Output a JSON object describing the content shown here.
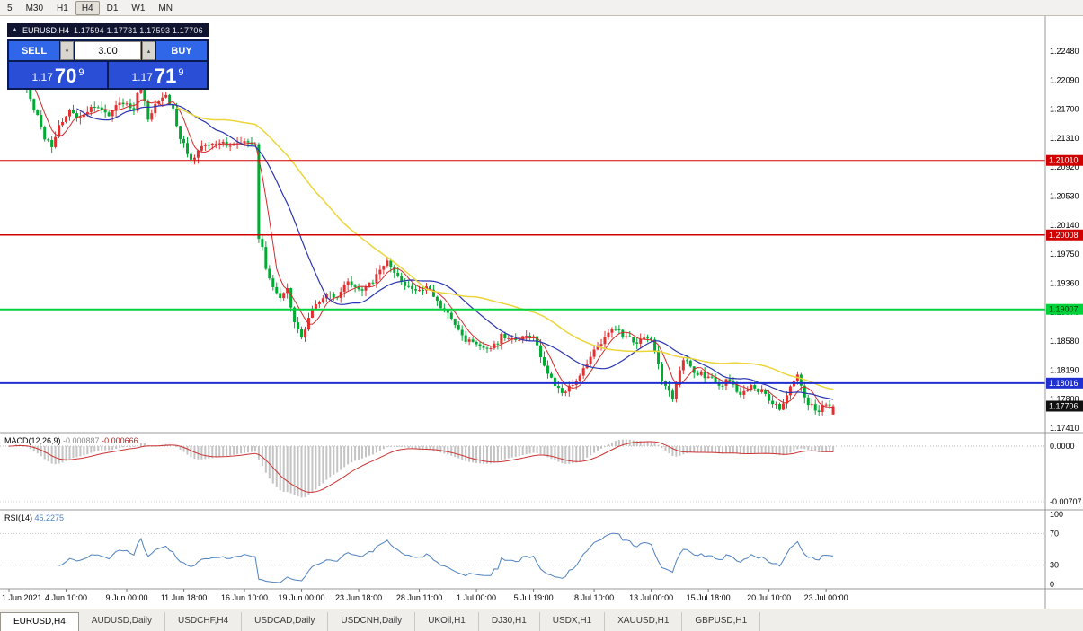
{
  "toolbar": {
    "timeframes": [
      "5",
      "M30",
      "H1",
      "H4",
      "D1",
      "W1",
      "MN"
    ],
    "active": "H4"
  },
  "chart_title": {
    "collapse_icon": "▲",
    "symbol": "EURUSD,H4",
    "ohlc": "1.17594 1.17731 1.17593 1.17706"
  },
  "trade_panel": {
    "sell_label": "SELL",
    "buy_label": "BUY",
    "volume": "3.00",
    "spinner_up_icon": "▴",
    "spinner_down_icon": "▾",
    "sell_price": {
      "base": "1.17",
      "pips": "70",
      "pipette": "9"
    },
    "buy_price": {
      "base": "1.17",
      "pips": "71",
      "pipette": "9"
    }
  },
  "price_axis": {
    "labels": [
      "1.22480",
      "1.22090",
      "1.21700",
      "1.21310",
      "1.20920",
      "1.20530",
      "1.20140",
      "1.19750",
      "1.19360",
      "1.18970",
      "1.18580",
      "1.18190",
      "1.17800",
      "1.17410"
    ],
    "tags": [
      {
        "text": "1.21010",
        "price": 1.2101,
        "bg": "#d00000",
        "fg": "#ffffff"
      },
      {
        "text": "1.20008",
        "price": 1.20008,
        "bg": "#d00000",
        "fg": "#ffffff"
      },
      {
        "text": "1.19007",
        "price": 1.19007,
        "bg": "#00d23c",
        "fg": "#003300"
      },
      {
        "text": "1.18016",
        "price": 1.18016,
        "bg": "#1f2fd0",
        "fg": "#ffffff"
      },
      {
        "text": "1.17706",
        "price": 1.17706,
        "bg": "#111111",
        "fg": "#ffffff"
      }
    ]
  },
  "macd_panel": {
    "name": "MACD(12,26,9)",
    "value_main": "-0.000887",
    "value_signal": "-0.000666",
    "axis_labels": [
      "0.0000",
      "-0.00707"
    ]
  },
  "rsi_panel": {
    "name": "RSI(14)",
    "value": "45.2275",
    "axis_labels": [
      "100",
      "70",
      "30",
      "0"
    ],
    "levels": [
      70,
      30
    ]
  },
  "time_axis": {
    "labels": [
      "1 Jun 2021",
      "4 Jun 10:00",
      "9 Jun 00:00",
      "11 Jun 18:00",
      "16 Jun 10:00",
      "19 Jun 00:00",
      "23 Jun 18:00",
      "28 Jun 11:00",
      "1 Jul 00:00",
      "5 Jul 19:00",
      "8 Jul 10:00",
      "13 Jul 00:00",
      "15 Jul 18:00",
      "20 Jul 10:00",
      "23 Jul 00:00"
    ],
    "indices": [
      0,
      16,
      33,
      49,
      66,
      82,
      98,
      115,
      131,
      147,
      164,
      180,
      196,
      213,
      229
    ]
  },
  "tabs": {
    "active": "EURUSD,H4",
    "items": [
      "EURUSD,H4",
      "AUDUSD,Daily",
      "USDCHF,H4",
      "USDCAD,Daily",
      "USDCNH,Daily",
      "UKOil,H1",
      "DJ30,H1",
      "USDX,H1",
      "XAUUSD,H1",
      "GBPUSD,H1"
    ]
  },
  "chart_data": {
    "type": "candlestick",
    "symbol": "EURUSD",
    "timeframe": "H4",
    "title": "EURUSD,H4",
    "visible_time_range": [
      "1 Jun 2021",
      "23 Jul 2021"
    ],
    "ylim": [
      1.1735,
      1.2295
    ],
    "candle_count": 232,
    "seed": 9,
    "noise": 0.0008,
    "wick": 0.0008,
    "colors": {
      "up": "#e03232",
      "down": "#00aa33"
    },
    "anchors": [
      [
        0,
        1.2215
      ],
      [
        2,
        1.2232
      ],
      [
        4,
        1.2207
      ],
      [
        7,
        1.2172
      ],
      [
        10,
        1.2132
      ],
      [
        12,
        1.2118
      ],
      [
        14,
        1.2148
      ],
      [
        17,
        1.2166
      ],
      [
        20,
        1.2158
      ],
      [
        24,
        1.2174
      ],
      [
        28,
        1.2164
      ],
      [
        32,
        1.218
      ],
      [
        35,
        1.2168
      ],
      [
        37,
        1.2208
      ],
      [
        39,
        1.2152
      ],
      [
        41,
        1.2176
      ],
      [
        44,
        1.2188
      ],
      [
        46,
        1.2168
      ],
      [
        48,
        1.2132
      ],
      [
        51,
        1.2104
      ],
      [
        54,
        1.2118
      ],
      [
        58,
        1.2126
      ],
      [
        62,
        1.2122
      ],
      [
        66,
        1.2128
      ],
      [
        69,
        1.212
      ],
      [
        70,
        1.1998
      ],
      [
        71,
        1.1988
      ],
      [
        72,
        1.1952
      ],
      [
        74,
        1.1932
      ],
      [
        76,
        1.1912
      ],
      [
        78,
        1.1926
      ],
      [
        80,
        1.1882
      ],
      [
        82,
        1.1862
      ],
      [
        84,
        1.1888
      ],
      [
        86,
        1.1908
      ],
      [
        89,
        1.192
      ],
      [
        92,
        1.1914
      ],
      [
        95,
        1.1938
      ],
      [
        98,
        1.1926
      ],
      [
        101,
        1.1934
      ],
      [
        104,
        1.195
      ],
      [
        106,
        1.1966
      ],
      [
        109,
        1.1944
      ],
      [
        112,
        1.193
      ],
      [
        115,
        1.1926
      ],
      [
        118,
        1.193
      ],
      [
        121,
        1.1904
      ],
      [
        124,
        1.1888
      ],
      [
        127,
        1.1862
      ],
      [
        130,
        1.1856
      ],
      [
        133,
        1.1845
      ],
      [
        136,
        1.1852
      ],
      [
        138,
        1.1865
      ],
      [
        141,
        1.1859
      ],
      [
        144,
        1.1863
      ],
      [
        147,
        1.1866
      ],
      [
        150,
        1.1824
      ],
      [
        153,
        1.1796
      ],
      [
        155,
        1.1787
      ],
      [
        158,
        1.1801
      ],
      [
        161,
        1.1821
      ],
      [
        164,
        1.1844
      ],
      [
        167,
        1.1861
      ],
      [
        170,
        1.1875
      ],
      [
        173,
        1.1861
      ],
      [
        176,
        1.1857
      ],
      [
        180,
        1.1861
      ],
      [
        183,
        1.1806
      ],
      [
        186,
        1.1782
      ],
      [
        189,
        1.1835
      ],
      [
        192,
        1.1818
      ],
      [
        196,
        1.181
      ],
      [
        199,
        1.1798
      ],
      [
        202,
        1.1806
      ],
      [
        205,
        1.1786
      ],
      [
        208,
        1.1797
      ],
      [
        211,
        1.1788
      ],
      [
        213,
        1.1778
      ],
      [
        216,
        1.1767
      ],
      [
        219,
        1.1794
      ],
      [
        221,
        1.1812
      ],
      [
        223,
        1.1779
      ],
      [
        225,
        1.1771
      ],
      [
        227,
        1.1765
      ],
      [
        229,
        1.1773
      ],
      [
        231,
        1.17706
      ]
    ],
    "last_candle": {
      "open": 1.17594,
      "high": 1.17731,
      "low": 1.17593,
      "close": 1.17706
    },
    "moving_averages": [
      {
        "name": "fast",
        "period": 6,
        "color": "#d42a2a",
        "width": 1
      },
      {
        "name": "medium",
        "period": 20,
        "color": "#2a35b0",
        "width": 1.2
      },
      {
        "name": "slow",
        "period": 48,
        "color": "#ecd53a",
        "width": 1.5
      }
    ],
    "hlines": [
      {
        "price": 1.2101,
        "color": "#d00000",
        "width": 1
      },
      {
        "price": 1.20008,
        "color": "#d00000",
        "width": 1.5
      },
      {
        "price": 1.19007,
        "color": "#00d23c",
        "width": 2
      },
      {
        "price": 1.18016,
        "color": "#1f2fd0",
        "width": 2
      }
    ],
    "indicators": [
      {
        "type": "MACD",
        "params": [
          12,
          26,
          9
        ],
        "current": [
          -0.000887,
          -0.000666
        ]
      },
      {
        "type": "RSI",
        "params": [
          14
        ],
        "current": 45.2275
      }
    ]
  }
}
